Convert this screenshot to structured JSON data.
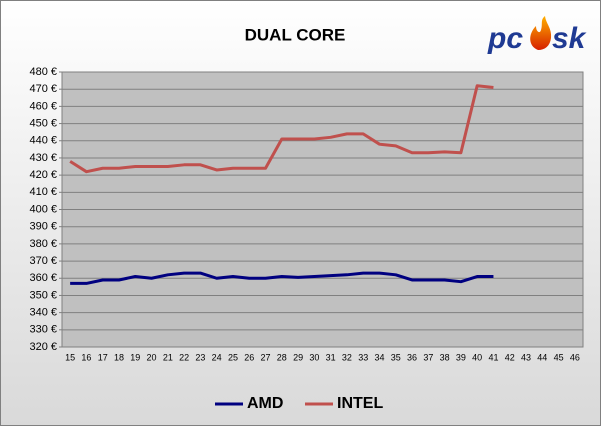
{
  "chart_data": {
    "type": "line",
    "title": "DUAL CORE",
    "logo": {
      "left": "pc",
      "right": "sk"
    },
    "categories": [
      "15",
      "16",
      "17",
      "18",
      "19",
      "20",
      "21",
      "22",
      "23",
      "24",
      "25",
      "26",
      "27",
      "28",
      "29",
      "30",
      "31",
      "32",
      "33",
      "34",
      "35",
      "36",
      "37",
      "38",
      "39",
      "40",
      "41",
      "42",
      "43",
      "44",
      "45",
      "46"
    ],
    "series": [
      {
        "name": "AMD",
        "color": "#000080",
        "values": [
          357,
          357,
          359,
          359,
          361,
          360,
          362,
          363,
          363,
          360,
          361,
          360,
          360,
          361,
          360.5,
          361,
          361.5,
          362,
          363,
          363,
          362,
          359,
          359,
          359,
          358,
          361,
          361,
          null,
          null,
          null,
          null,
          null
        ]
      },
      {
        "name": "INTEL",
        "color": "#c0504d",
        "values": [
          428,
          422,
          424,
          424,
          425,
          425,
          425,
          426,
          426,
          423,
          424,
          424,
          424,
          441,
          441,
          441,
          442,
          444,
          444,
          438,
          437,
          433,
          433,
          433.5,
          433,
          472,
          471,
          null,
          null,
          null,
          null,
          null
        ]
      }
    ],
    "ylim": [
      320,
      480
    ],
    "yticks": [
      {
        "value": 320,
        "label": "320 €"
      },
      {
        "value": 330,
        "label": "330 €"
      },
      {
        "value": 340,
        "label": "340 €"
      },
      {
        "value": 350,
        "label": "350 €"
      },
      {
        "value": 360,
        "label": "360 €"
      },
      {
        "value": 370,
        "label": "370 €"
      },
      {
        "value": 380,
        "label": "380 €"
      },
      {
        "value": 390,
        "label": "390 €"
      },
      {
        "value": 400,
        "label": "400 €"
      },
      {
        "value": 410,
        "label": "410 €"
      },
      {
        "value": 420,
        "label": "420 €"
      },
      {
        "value": 430,
        "label": "430 €"
      },
      {
        "value": 440,
        "label": "440 €"
      },
      {
        "value": 450,
        "label": "450 €"
      },
      {
        "value": 460,
        "label": "460 €"
      },
      {
        "value": 470,
        "label": "470 €"
      },
      {
        "value": 480,
        "label": "480 €"
      }
    ],
    "grid": true,
    "legend": "bottom"
  }
}
